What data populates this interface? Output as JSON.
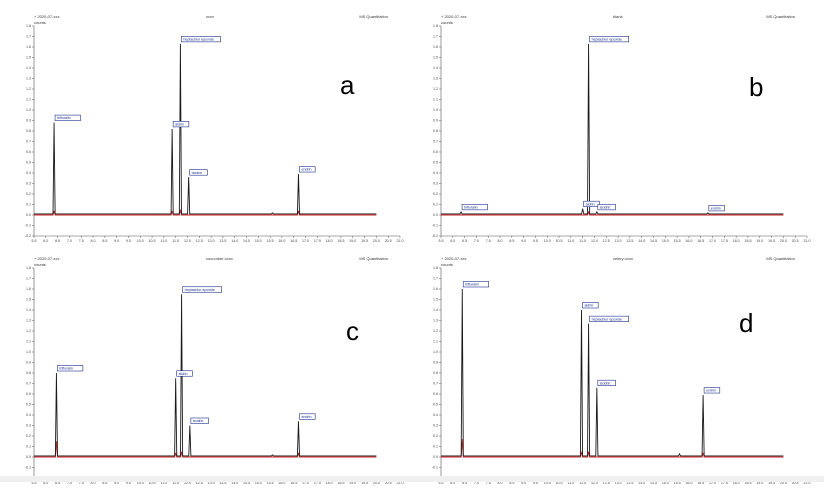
{
  "chart_data": [
    {
      "type": "line",
      "panel_letter": "a",
      "header_left": "+ 2020-07-xxx",
      "header_center": "xxxx",
      "header_right": "MS Quantitation",
      "y_unit": "counts",
      "xlim": [
        5.5,
        21.0
      ],
      "ylim": [
        -0.2,
        1.8
      ],
      "x_ticks": [
        5.5,
        6.0,
        6.5,
        7.0,
        7.5,
        8.0,
        8.5,
        9.0,
        9.5,
        10.0,
        10.5,
        11.0,
        11.5,
        12.0,
        12.5,
        13.0,
        13.5,
        14.0,
        14.5,
        15.0,
        15.5,
        16.0,
        16.5,
        17.0,
        17.5,
        18.0,
        18.5,
        19.0,
        19.5,
        20.0,
        20.5,
        21.0
      ],
      "y_ticks": [
        -0.2,
        -0.1,
        0.0,
        0.1,
        0.2,
        0.3,
        0.4,
        0.5,
        0.6,
        0.7,
        0.8,
        0.9,
        1.0,
        1.1,
        1.2,
        1.3,
        1.4,
        1.5,
        1.6,
        1.7,
        1.8
      ],
      "series": [
        {
          "color": "#1a1a1a",
          "baseline": 0.01,
          "peaks": [
            {
              "x": 6.35,
              "y": 0.88,
              "label": "trifluralin"
            },
            {
              "x": 11.35,
              "y": 0.82,
              "label": "aldrin"
            },
            {
              "x": 11.7,
              "y": 1.63,
              "label": "heptachlor epoxide"
            },
            {
              "x": 12.05,
              "y": 0.36,
              "label": "isodrin"
            },
            {
              "x": 15.6,
              "y": 0.02,
              "label": ""
            },
            {
              "x": 16.7,
              "y": 0.39,
              "label": "endrin"
            }
          ]
        },
        {
          "color": "#d22222",
          "baseline": 0.0,
          "peaks": [
            {
              "x": 6.35,
              "y": 0.04,
              "label": ""
            },
            {
              "x": 11.35,
              "y": 0.04,
              "label": ""
            },
            {
              "x": 11.7,
              "y": 0.05,
              "label": ""
            },
            {
              "x": 16.7,
              "y": 0.04,
              "label": ""
            }
          ]
        }
      ]
    },
    {
      "type": "line",
      "panel_letter": "b",
      "header_left": "+ 2020-07-xxx",
      "header_center": "blank",
      "header_right": "MS Quantitation",
      "y_unit": "counts",
      "xlim": [
        5.5,
        21.0
      ],
      "ylim": [
        -0.2,
        1.8
      ],
      "x_ticks": [
        5.5,
        6.0,
        6.5,
        7.0,
        7.5,
        8.0,
        8.5,
        9.0,
        9.5,
        10.0,
        10.5,
        11.0,
        11.5,
        12.0,
        12.5,
        13.0,
        13.5,
        14.0,
        14.5,
        15.0,
        15.5,
        16.0,
        16.5,
        17.0,
        17.5,
        18.0,
        18.5,
        19.0,
        19.5,
        20.0,
        20.5,
        21.0
      ],
      "y_ticks": [
        -0.2,
        -0.1,
        0.0,
        0.1,
        0.2,
        0.3,
        0.4,
        0.5,
        0.6,
        0.7,
        0.8,
        0.9,
        1.0,
        1.1,
        1.2,
        1.3,
        1.4,
        1.5,
        1.6,
        1.7,
        1.8
      ],
      "series": [
        {
          "color": "#1a1a1a",
          "baseline": 0.01,
          "peaks": [
            {
              "x": 6.35,
              "y": 0.03,
              "label": "trifluralin"
            },
            {
              "x": 11.5,
              "y": 0.06,
              "label": "aldrin"
            },
            {
              "x": 11.75,
              "y": 1.63,
              "label": "heptachlor epoxide"
            },
            {
              "x": 12.1,
              "y": 0.03,
              "label": "isodrin"
            },
            {
              "x": 16.8,
              "y": 0.02,
              "label": "endrin"
            }
          ]
        },
        {
          "color": "#d22222",
          "baseline": 0.0,
          "peaks": [
            {
              "x": 11.75,
              "y": 0.03,
              "label": ""
            }
          ]
        }
      ]
    },
    {
      "type": "line",
      "panel_letter": "c",
      "header_left": "+ 2020-07-xxx",
      "header_center": "cucumber-xxxx",
      "header_right": "MS Quantitation",
      "y_unit": "counts",
      "xlim": [
        5.5,
        21.0
      ],
      "ylim": [
        -0.2,
        1.8
      ],
      "x_ticks": [
        5.5,
        6.0,
        6.5,
        7.0,
        7.5,
        8.0,
        8.5,
        9.0,
        9.5,
        10.0,
        10.5,
        11.0,
        11.5,
        12.0,
        12.5,
        13.0,
        13.5,
        14.0,
        14.5,
        15.0,
        15.5,
        16.0,
        16.5,
        17.0,
        17.5,
        18.0,
        18.5,
        19.0,
        19.5,
        20.0,
        20.5,
        21.0
      ],
      "y_ticks": [
        -0.2,
        -0.1,
        0.0,
        0.1,
        0.2,
        0.3,
        0.4,
        0.5,
        0.6,
        0.7,
        0.8,
        0.9,
        1.0,
        1.1,
        1.2,
        1.3,
        1.4,
        1.5,
        1.6,
        1.7,
        1.8
      ],
      "series": [
        {
          "color": "#1a1a1a",
          "baseline": 0.01,
          "peaks": [
            {
              "x": 6.45,
              "y": 0.8,
              "label": "trifluralin"
            },
            {
              "x": 11.5,
              "y": 0.75,
              "label": "aldrin"
            },
            {
              "x": 11.75,
              "y": 1.55,
              "label": "heptachlor epoxide"
            },
            {
              "x": 12.1,
              "y": 0.3,
              "label": "isodrin"
            },
            {
              "x": 15.6,
              "y": 0.02,
              "label": ""
            },
            {
              "x": 16.7,
              "y": 0.34,
              "label": "endrin"
            }
          ]
        },
        {
          "color": "#d22222",
          "baseline": 0.0,
          "peaks": [
            {
              "x": 6.45,
              "y": 0.15,
              "label": ""
            },
            {
              "x": 11.5,
              "y": 0.04,
              "label": ""
            },
            {
              "x": 11.75,
              "y": 0.05,
              "label": ""
            },
            {
              "x": 16.7,
              "y": 0.04,
              "label": ""
            }
          ]
        }
      ]
    },
    {
      "type": "line",
      "panel_letter": "d",
      "header_left": "+ 2020-07-xxx",
      "header_center": "celery-xxxx",
      "header_right": "MS Quantitation",
      "y_unit": "counts",
      "xlim": [
        5.5,
        21.0
      ],
      "ylim": [
        -0.2,
        1.8
      ],
      "x_ticks": [
        5.5,
        6.0,
        6.5,
        7.0,
        7.5,
        8.0,
        8.5,
        9.0,
        9.5,
        10.0,
        10.5,
        11.0,
        11.5,
        12.0,
        12.5,
        13.0,
        13.5,
        14.0,
        14.5,
        15.0,
        15.5,
        16.0,
        16.5,
        17.0,
        17.5,
        18.0,
        18.5,
        19.0,
        19.5,
        20.0,
        20.5,
        21.0
      ],
      "y_ticks": [
        -0.2,
        -0.1,
        0.0,
        0.1,
        0.2,
        0.3,
        0.4,
        0.5,
        0.6,
        0.7,
        0.8,
        0.9,
        1.0,
        1.1,
        1.2,
        1.3,
        1.4,
        1.5,
        1.6,
        1.7,
        1.8
      ],
      "series": [
        {
          "color": "#1a1a1a",
          "baseline": 0.01,
          "peaks": [
            {
              "x": 6.4,
              "y": 1.6,
              "label": "trifluralin"
            },
            {
              "x": 11.45,
              "y": 1.4,
              "label": "aldrin"
            },
            {
              "x": 11.75,
              "y": 1.27,
              "label": "heptachlor epoxide"
            },
            {
              "x": 12.1,
              "y": 0.66,
              "label": "isodrin"
            },
            {
              "x": 15.6,
              "y": 0.03,
              "label": ""
            },
            {
              "x": 16.6,
              "y": 0.59,
              "label": "endrin"
            }
          ]
        },
        {
          "color": "#d22222",
          "baseline": 0.0,
          "peaks": [
            {
              "x": 6.4,
              "y": 0.17,
              "label": ""
            },
            {
              "x": 11.45,
              "y": 0.05,
              "label": ""
            },
            {
              "x": 11.75,
              "y": 0.05,
              "label": ""
            },
            {
              "x": 16.6,
              "y": 0.04,
              "label": ""
            }
          ]
        }
      ]
    }
  ]
}
